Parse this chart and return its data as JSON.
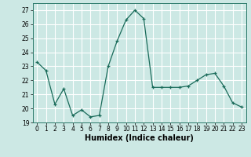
{
  "x": [
    0,
    1,
    2,
    3,
    4,
    5,
    6,
    7,
    8,
    9,
    10,
    11,
    12,
    13,
    14,
    15,
    16,
    17,
    18,
    19,
    20,
    21,
    22,
    23
  ],
  "y": [
    23.3,
    22.7,
    20.3,
    21.4,
    19.5,
    19.9,
    19.4,
    19.5,
    23.0,
    24.8,
    26.3,
    27.0,
    26.4,
    21.5,
    21.5,
    21.5,
    21.5,
    21.6,
    22.0,
    22.4,
    22.5,
    21.6,
    20.4,
    20.1
  ],
  "xlabel": "Humidex (Indice chaleur)",
  "xlim": [
    -0.5,
    23.5
  ],
  "ylim": [
    19,
    27.5
  ],
  "yticks": [
    19,
    20,
    21,
    22,
    23,
    24,
    25,
    26,
    27
  ],
  "xticks": [
    0,
    1,
    2,
    3,
    4,
    5,
    6,
    7,
    8,
    9,
    10,
    11,
    12,
    13,
    14,
    15,
    16,
    17,
    18,
    19,
    20,
    21,
    22,
    23
  ],
  "line_color": "#1a6b5a",
  "marker": "+",
  "bg_color": "#cce8e4",
  "grid_color": "#ffffff",
  "tick_fontsize": 5.5,
  "label_fontsize": 7
}
